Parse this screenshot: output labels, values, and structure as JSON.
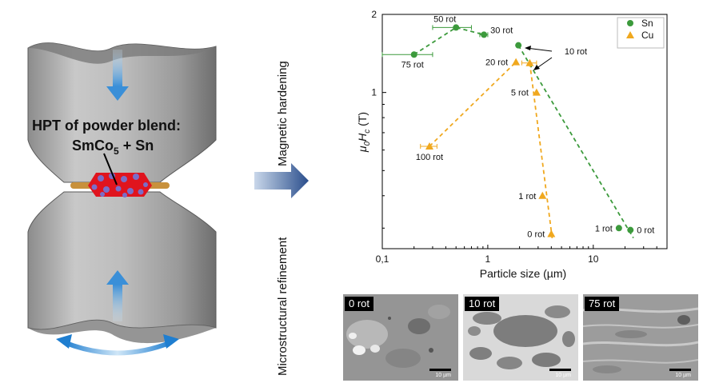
{
  "hpt": {
    "title": "HPT of powder blend:",
    "composition_main": "SmCo",
    "composition_sub": "5",
    "composition_rest": " + Sn"
  },
  "process": {
    "upper_label": "Magnetic hardening",
    "lower_label": "Microstructural refinement"
  },
  "colors": {
    "sn": "#3c9a3c",
    "cu": "#f0a81e",
    "sample_red": "#e0141e",
    "sample_blue": "#7a6ec8",
    "copper_band": "#c8913c",
    "arrow_blue": "#3a8fd8"
  },
  "chart_data": {
    "type": "scatter",
    "x_scale": "log",
    "y_scale": "log",
    "xlabel": "Particle size (µm)",
    "xlim": [
      0.1,
      50
    ],
    "ylim": [
      0.25,
      2
    ],
    "x_ticks": [
      "0,1",
      "1",
      "10"
    ],
    "y_ticks": [
      "1",
      "2"
    ],
    "legend_position": "top-right",
    "series": [
      {
        "name": "Sn",
        "marker": "circle",
        "color": "#3c9a3c",
        "points": [
          {
            "x": 22.5,
            "y": 0.295,
            "label": "0 rot",
            "xerr": 0
          },
          {
            "x": 17.5,
            "y": 0.3,
            "label": "1 rot",
            "xerr": 0
          },
          {
            "x": 1.95,
            "y": 1.52,
            "label": "10 rot",
            "xerr": 0
          },
          {
            "x": 0.92,
            "y": 1.67,
            "label": "30 rot",
            "xerr": 0.08
          },
          {
            "x": 0.5,
            "y": 1.78,
            "label": "50 rot",
            "xerr": 0.2
          },
          {
            "x": 0.2,
            "y": 1.4,
            "label": "75 rot",
            "xerr": 0.1
          }
        ],
        "trend": [
          [
            1.95,
            1.52
          ],
          [
            24,
            0.275
          ]
        ],
        "trend2": [
          [
            0.2,
            1.4
          ],
          [
            0.5,
            1.78
          ],
          [
            0.92,
            1.67
          ]
        ]
      },
      {
        "name": "Cu",
        "marker": "triangle",
        "color": "#f0a81e",
        "points": [
          {
            "x": 4.0,
            "y": 0.285,
            "label": "0 rot",
            "xerr": 0
          },
          {
            "x": 3.3,
            "y": 0.4,
            "label": "1 rot",
            "xerr": 0
          },
          {
            "x": 2.9,
            "y": 1.0,
            "label": "5 rot",
            "xerr": 0
          },
          {
            "x": 2.5,
            "y": 1.3,
            "label": "10 rot",
            "xerr": 0.4
          },
          {
            "x": 1.85,
            "y": 1.31,
            "label": "20 rot",
            "xerr": 0
          },
          {
            "x": 0.28,
            "y": 0.62,
            "label": "100 rot",
            "xerr": 0.05
          }
        ],
        "trend": [
          [
            2.5,
            1.3
          ],
          [
            4.1,
            0.27
          ]
        ],
        "trend2": [
          [
            0.28,
            0.62
          ],
          [
            1.85,
            1.31
          ]
        ]
      }
    ]
  },
  "micrographs": [
    {
      "label": "0 rot",
      "scale": "10 µm"
    },
    {
      "label": "10 rot",
      "scale": "10 µm"
    },
    {
      "label": "75 rot",
      "scale": "10 µm"
    }
  ]
}
